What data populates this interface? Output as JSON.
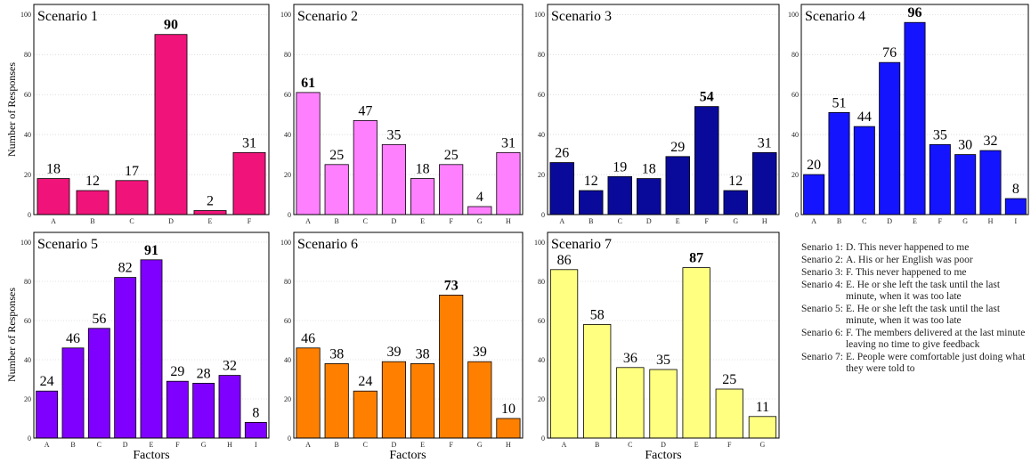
{
  "shared": {
    "ylabel": "Number of Responses",
    "xlabel": "Factors",
    "y_ticks": [
      0,
      20,
      40,
      60,
      80,
      100
    ]
  },
  "chart_data": [
    {
      "type": "bar",
      "title": "Scenario 1",
      "categories": [
        "A",
        "B",
        "C",
        "D",
        "E",
        "F"
      ],
      "values": [
        18,
        12,
        17,
        90,
        2,
        31
      ],
      "highlight": "D",
      "color": "#f0147a",
      "ylim": [
        0,
        105
      ]
    },
    {
      "type": "bar",
      "title": "Scenario 2",
      "categories": [
        "A",
        "B",
        "C",
        "D",
        "E",
        "F",
        "G",
        "H"
      ],
      "values": [
        61,
        25,
        47,
        35,
        18,
        25,
        4,
        31
      ],
      "highlight": "A",
      "color": "#ff80ff",
      "ylim": [
        0,
        105
      ]
    },
    {
      "type": "bar",
      "title": "Scenario 3",
      "categories": [
        "A",
        "B",
        "C",
        "D",
        "E",
        "F",
        "G",
        "H"
      ],
      "values": [
        26,
        12,
        19,
        18,
        29,
        54,
        12,
        31
      ],
      "highlight": "F",
      "color": "#0a0a9a",
      "ylim": [
        0,
        105
      ]
    },
    {
      "type": "bar",
      "title": "Scenario 4",
      "categories": [
        "A",
        "B",
        "C",
        "D",
        "E",
        "F",
        "G",
        "H",
        "I"
      ],
      "values": [
        20,
        51,
        44,
        76,
        96,
        35,
        30,
        32,
        8
      ],
      "highlight": "E",
      "color": "#1414ff",
      "ylim": [
        0,
        105
      ]
    },
    {
      "type": "bar",
      "title": "Scenario 5",
      "categories": [
        "A",
        "B",
        "C",
        "D",
        "E",
        "F",
        "G",
        "H",
        "I"
      ],
      "values": [
        24,
        46,
        56,
        82,
        91,
        29,
        28,
        32,
        8
      ],
      "highlight": "E",
      "color": "#8000ff",
      "ylim": [
        0,
        105
      ]
    },
    {
      "type": "bar",
      "title": "Scenario 6",
      "categories": [
        "A",
        "B",
        "C",
        "D",
        "E",
        "F",
        "G",
        "H"
      ],
      "values": [
        46,
        38,
        24,
        39,
        38,
        73,
        39,
        10
      ],
      "highlight": "F",
      "color": "#ff8000",
      "ylim": [
        0,
        105
      ]
    },
    {
      "type": "bar",
      "title": "Scenario 7",
      "categories": [
        "A",
        "B",
        "C",
        "D",
        "E",
        "F",
        "G"
      ],
      "values": [
        86,
        58,
        36,
        35,
        87,
        25,
        11
      ],
      "highlight": "E",
      "color": "#ffff80",
      "ylim": [
        0,
        105
      ]
    }
  ],
  "notes": [
    {
      "label": "Senario 1:",
      "text": "D. This never happened to me"
    },
    {
      "label": "Senario 2:",
      "text": "A. His or her English was poor"
    },
    {
      "label": "Senario 3:",
      "text": "F. This never happened to me"
    },
    {
      "label": "Senario 4:",
      "text": "E. He or she left the task until the last minute, when it was too late"
    },
    {
      "label": "Senario 5:",
      "text": "E. He or she left the task until the last minute, when it was too late"
    },
    {
      "label": "Senario 6:",
      "text": "F. The members delivered at the last minute leaving no time to give feedback"
    },
    {
      "label": "Senario 7:",
      "text": "E. People were comfortable just doing what they were told to"
    }
  ]
}
